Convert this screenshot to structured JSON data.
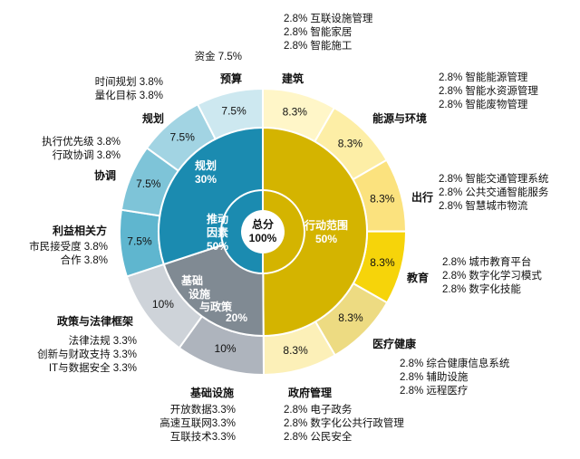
{
  "chart_data": {
    "type": "sunburst",
    "center": {
      "label": "总分",
      "value": "100%"
    },
    "halves": [
      {
        "name": "行动范围",
        "value": "50%",
        "color": "#d4b400"
      },
      {
        "name": "推动因素",
        "value": "50%",
        "color": "#1b8bb0"
      }
    ],
    "middle_ring": [
      {
        "name": "规划",
        "value": "30%",
        "parent": "推动因素"
      },
      {
        "name": "基础设施与政策",
        "lines": [
          "基础",
          "设施",
          "与政策"
        ],
        "value": "20%",
        "parent": "推动因素"
      }
    ],
    "outer_ring": [
      {
        "name": "建筑",
        "value": "8.3%",
        "color": "#fff6c8",
        "items": [
          [
            "2.8%",
            "互联设施管理"
          ],
          [
            "2.8%",
            "智能家居"
          ],
          [
            "2.8%",
            "智能施工"
          ]
        ]
      },
      {
        "name": "能源与环境",
        "value": "8.3%",
        "color": "#fdeea6",
        "items": [
          [
            "2.8%",
            "智能能源管理"
          ],
          [
            "2.8%",
            "智能水资源管理"
          ],
          [
            "2.8%",
            "智能废物管理"
          ]
        ]
      },
      {
        "name": "出行",
        "value": "8.3%",
        "color": "#fbe27e",
        "items": [
          [
            "2.8%",
            "智能交通管理系统"
          ],
          [
            "2.8%",
            "公共交通智能服务"
          ],
          [
            "2.8%",
            "智慧城市物流"
          ]
        ]
      },
      {
        "name": "教育",
        "value": "8.3%",
        "color": "#f6d40a",
        "items": [
          [
            "2.8%",
            "城市教育平台"
          ],
          [
            "2.8%",
            "数字化学习模式"
          ],
          [
            "2.8%",
            "数字化技能"
          ]
        ]
      },
      {
        "name": "医疗健康",
        "value": "8.3%",
        "color": "#eddb82",
        "items": [
          [
            "2.8%",
            "综合健康信息系统"
          ],
          [
            "2.8%",
            "辅助设施"
          ],
          [
            "2.8%",
            "远程医疗"
          ]
        ]
      },
      {
        "name": "政府管理",
        "value": "8.3%",
        "color": "#fcf0b8",
        "items": [
          [
            "2.8%",
            "电子政务"
          ],
          [
            "2.8%",
            "数字化公共行政管理"
          ],
          [
            "2.8%",
            "公民安全"
          ]
        ]
      },
      {
        "name": "基础设施",
        "value": "10%",
        "color": "#aeb4bd",
        "items": [
          [
            "开放数据",
            "3.3%"
          ],
          [
            "高速互联网",
            "3.3%"
          ],
          [
            "互联技术",
            "3.3%"
          ]
        ]
      },
      {
        "name": "政策与法律框架",
        "value": "10%",
        "color": "#ced3d9",
        "items": [
          [
            "法律法规",
            "3.3%"
          ],
          [
            "创新与财政支持",
            "3.3%"
          ],
          [
            "IT与数据安全",
            "3.3%"
          ]
        ]
      },
      {
        "name": "利益相关方",
        "value": "7.5%",
        "color": "#5fb6cf",
        "items": [
          [
            "市民接受度",
            "3.8%"
          ],
          [
            "合作",
            "3.8%"
          ]
        ]
      },
      {
        "name": "协调",
        "value": "7.5%",
        "color": "#7ec4d8",
        "items": [
          [
            "执行优先级",
            "3.8%"
          ],
          [
            "行政协调",
            "3.8%"
          ]
        ]
      },
      {
        "name": "规划",
        "value": "7.5%",
        "color": "#a2d4e3",
        "items": [
          [
            "时间规划",
            "3.8%"
          ],
          [
            "量化目标",
            "3.8%"
          ]
        ]
      },
      {
        "name": "预算",
        "value": "7.5%",
        "color": "#cde8f0",
        "items": [
          [
            "资金",
            "7.5%"
          ]
        ]
      }
    ]
  }
}
